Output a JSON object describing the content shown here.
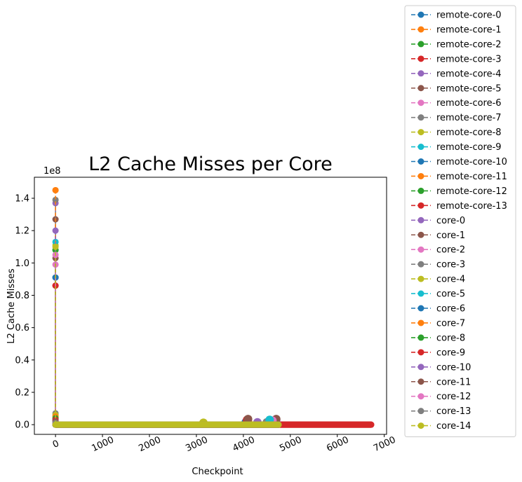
{
  "chart_data": {
    "type": "line",
    "title": "L2 Cache Misses per Core",
    "xlabel": "Checkpoint",
    "ylabel": "L2 Cache Misses",
    "y_offset_label": "1e8",
    "xlim": [
      -450,
      7050
    ],
    "ylim": [
      -6000000,
      153000000
    ],
    "xticks": [
      0,
      1000,
      2000,
      3000,
      4000,
      5000,
      6000,
      7000
    ],
    "xtick_labels": [
      "0",
      "1000",
      "2000",
      "3000",
      "4000",
      "5000",
      "6000",
      "7000"
    ],
    "yticks": [
      0,
      20000000,
      40000000,
      60000000,
      80000000,
      100000000,
      120000000,
      140000000
    ],
    "ytick_labels": [
      "0.0",
      "0.2",
      "0.4",
      "0.6",
      "0.8",
      "1.0",
      "1.2",
      "1.4"
    ],
    "xtick_rotation_deg": 25,
    "grid": false,
    "legend_position": "outside-right",
    "marker": "circle",
    "line_style": "dashed",
    "series": [
      {
        "name": "remote-core-0",
        "color": "#1f77b4",
        "start_value": 91000000,
        "end_x": 4750,
        "late_bumps": [
          [
            4050,
            1500000
          ],
          [
            4560,
            1200000
          ]
        ]
      },
      {
        "name": "remote-core-1",
        "color": "#ff7f0e",
        "start_value": 145000000,
        "end_x": 4750,
        "late_bumps": [
          [
            4100,
            1800000
          ]
        ]
      },
      {
        "name": "remote-core-2",
        "color": "#2ca02c",
        "start_value": 108000000,
        "end_x": 4750,
        "late_bumps": [
          [
            4600,
            1500000
          ]
        ]
      },
      {
        "name": "remote-core-3",
        "color": "#d62728",
        "start_value": 86000000,
        "end_x": 6720,
        "late_bumps": [
          [
            4080,
            3000000
          ]
        ]
      },
      {
        "name": "remote-core-4",
        "color": "#9467bd",
        "start_value": 137000000,
        "end_x": 4750,
        "late_bumps": [
          [
            4300,
            1500000
          ],
          [
            4700,
            3000000
          ]
        ]
      },
      {
        "name": "remote-core-5",
        "color": "#8c564b",
        "start_value": 127000000,
        "end_x": 4750,
        "late_bumps": [
          [
            4100,
            3500000
          ],
          [
            4700,
            3500000
          ]
        ]
      },
      {
        "name": "remote-core-6",
        "color": "#e377c2",
        "start_value": 99000000,
        "end_x": 4750,
        "late_bumps": [
          [
            4620,
            2500000
          ]
        ]
      },
      {
        "name": "remote-core-7",
        "color": "#7f7f7f",
        "start_value": 139000000,
        "end_x": 4750,
        "late_bumps": [
          [
            4500,
            1500000
          ]
        ]
      },
      {
        "name": "remote-core-8",
        "color": "#bcbd22",
        "start_value": 111000000,
        "end_x": 4750,
        "late_bumps": [
          [
            3150,
            1200000
          ]
        ]
      },
      {
        "name": "remote-core-9",
        "color": "#17becf",
        "start_value": 113000000,
        "end_x": 4750,
        "late_bumps": [
          [
            4560,
            3000000
          ]
        ]
      },
      {
        "name": "remote-core-10",
        "color": "#1f77b4",
        "start_value": 91000000,
        "end_x": 4750,
        "late_bumps": []
      },
      {
        "name": "remote-core-11",
        "color": "#ff7f0e",
        "start_value": 145000000,
        "end_x": 4750,
        "late_bumps": []
      },
      {
        "name": "remote-core-12",
        "color": "#2ca02c",
        "start_value": 108000000,
        "end_x": 4750,
        "late_bumps": []
      },
      {
        "name": "remote-core-13",
        "color": "#d62728",
        "start_value": 86000000,
        "end_x": 6720,
        "late_bumps": []
      },
      {
        "name": "core-0",
        "color": "#9467bd",
        "start_value": 120000000,
        "end_x": 4750,
        "late_bumps": []
      },
      {
        "name": "core-1",
        "color": "#8c564b",
        "start_value": 103000000,
        "end_x": 4750,
        "late_bumps": []
      },
      {
        "name": "core-2",
        "color": "#e377c2",
        "start_value": 105000000,
        "end_x": 4750,
        "late_bumps": []
      },
      {
        "name": "core-3",
        "color": "#7f7f7f",
        "start_value": 7000000,
        "end_x": 4750,
        "late_bumps": []
      },
      {
        "name": "core-4",
        "color": "#bcbd22",
        "start_value": 6000000,
        "end_x": 4750,
        "late_bumps": []
      },
      {
        "name": "core-5",
        "color": "#17becf",
        "start_value": 4000000,
        "end_x": 4750,
        "late_bumps": []
      },
      {
        "name": "core-6",
        "color": "#1f77b4",
        "start_value": 3000000,
        "end_x": 4750,
        "late_bumps": []
      },
      {
        "name": "core-7",
        "color": "#ff7f0e",
        "start_value": 5000000,
        "end_x": 4750,
        "late_bumps": []
      },
      {
        "name": "core-8",
        "color": "#2ca02c",
        "start_value": 4000000,
        "end_x": 4750,
        "late_bumps": []
      },
      {
        "name": "core-9",
        "color": "#d62728",
        "start_value": 3000000,
        "end_x": 6720,
        "late_bumps": []
      },
      {
        "name": "core-10",
        "color": "#9467bd",
        "start_value": 2000000,
        "end_x": 4750,
        "late_bumps": []
      },
      {
        "name": "core-11",
        "color": "#8c564b",
        "start_value": 2000000,
        "end_x": 4750,
        "late_bumps": []
      },
      {
        "name": "core-12",
        "color": "#e377c2",
        "start_value": 1000000,
        "end_x": 4750,
        "late_bumps": []
      },
      {
        "name": "core-13",
        "color": "#7f7f7f",
        "start_value": 1000000,
        "end_x": 4750,
        "late_bumps": []
      },
      {
        "name": "core-14",
        "color": "#bcbd22",
        "start_value": 110000000,
        "end_x": 4750,
        "late_bumps": []
      }
    ]
  }
}
